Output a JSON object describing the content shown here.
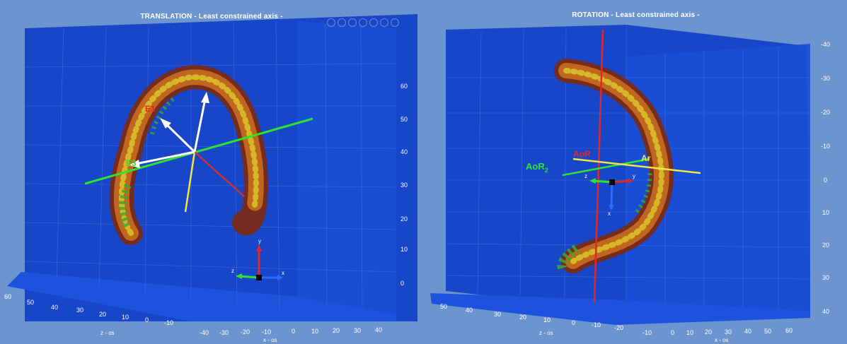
{
  "translation": {
    "title": "TRANSLATION - Least constrained axis -",
    "y_ticks": [
      "0",
      "10",
      "20",
      "30",
      "40",
      "50",
      "60"
    ],
    "x_ticks": [
      "-40",
      "-30",
      "-20",
      "-10",
      "0",
      "10",
      "20",
      "30",
      "40"
    ],
    "z_ticks": [
      "60",
      "50",
      "40",
      "30",
      "20",
      "10",
      "0",
      "-10"
    ],
    "x_axis_label": "x - os",
    "z_axis_label": "z - os",
    "vector_labels": [
      "E1",
      "E3"
    ],
    "triad_labels": {
      "y": "y",
      "z": "z",
      "x": "x"
    }
  },
  "rotation": {
    "title": "ROTATION - Least constrained axis -",
    "y_ticks": [
      "-40",
      "-30",
      "-20",
      "-10",
      "0",
      "10",
      "20",
      "30",
      "40"
    ],
    "x_ticks": [
      "-10",
      "0",
      "10",
      "20",
      "30",
      "40",
      "50",
      "60"
    ],
    "z_ticks": [
      "50",
      "40",
      "30",
      "20",
      "10",
      "0",
      "-10",
      "-20"
    ],
    "x_axis_label": "x - os",
    "z_axis_label": "z - os",
    "axis_labels": {
      "aor1": "AoR",
      "aor2_base": "AoR",
      "aor2_sub": "2",
      "ar": "Ar"
    },
    "triad_labels": {
      "z": "z",
      "y": "y",
      "x": "x"
    }
  },
  "toolbar_icons": [
    "rotate-3d-icon",
    "pan-icon",
    "zoom-in-icon",
    "zoom-out-icon",
    "data-cursor-icon",
    "brush-icon",
    "reset-view-icon"
  ]
}
